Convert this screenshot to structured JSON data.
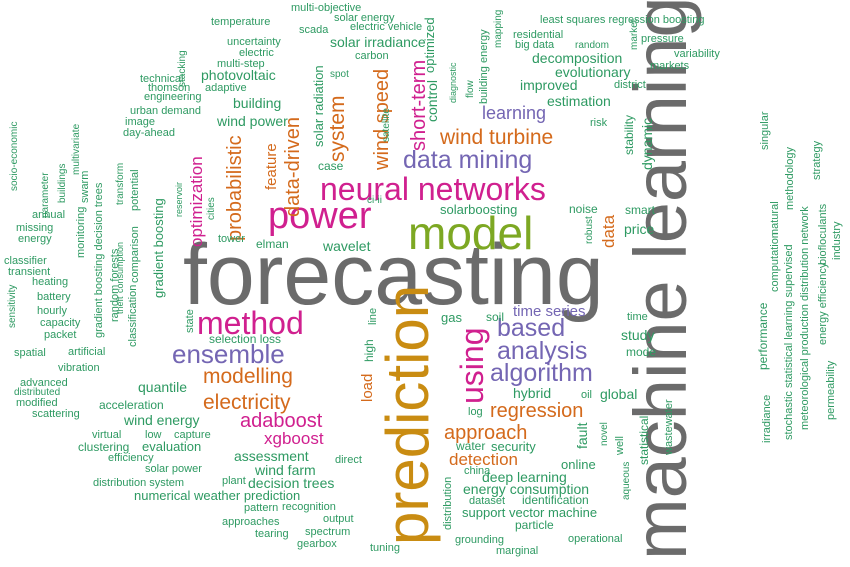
{
  "colors": {
    "gray": "#6b6b6b",
    "green": "#2e9a62",
    "orange": "#d46a1c",
    "magenta": "#d0208f",
    "purple": "#7466b3",
    "olive": "#7da823",
    "gold": "#c98c12",
    "teal": "#1f8c63"
  },
  "words": {
    "forecasting": "forecasting",
    "machine_learning": "machine learning",
    "prediction": "prediction",
    "model": "model",
    "power": "power",
    "neural_networks": "neural networks",
    "method": "method",
    "ensemble": "ensemble",
    "data_mining": "data mining",
    "using": "using",
    "based": "based",
    "analysis": "analysis",
    "algorithm": "algorithm",
    "modelling": "modelling",
    "electricity": "electricity",
    "adaboost": "adaboost",
    "xgboost": "xgboost",
    "regression": "regression",
    "approach": "approach",
    "detection": "detection",
    "wind_turbine": "wind turbine",
    "learning": "learning",
    "system": "system",
    "wind_speed": "wind speed",
    "short_term": "short-term",
    "data_driven": "data-driven",
    "probabilistic": "probabilistic",
    "optimization": "optimization",
    "feature": "feature",
    "data": "data",
    "time_series": "time series",
    "quantile": "quantile",
    "wind_energy": "wind energy",
    "assessment": "assessment",
    "wind_farm": "wind farm",
    "decision_trees": "decision trees",
    "numerical_weather_prediction": "numerical weather prediction",
    "deep_learning": "deep learning",
    "energy_consumption": "energy consumption",
    "support_vector_machine": "support vector machine",
    "identification": "identification",
    "hybrid": "hybrid",
    "global": "global",
    "statistical": "statistical",
    "estimation": "estimation",
    "improved": "improved",
    "evolutionary": "evolutionary",
    "decomposition": "decomposition",
    "photovoltaic": "photovoltaic",
    "building": "building",
    "wind_power": "wind power",
    "solar_irradiance": "solar irradiance",
    "control": "control",
    "wavelet": "wavelet",
    "elman": "elman",
    "tower": "tower",
    "solarboosting": "solarboosting",
    "price": "price",
    "smart": "smart",
    "noise": "noise",
    "study": "study",
    "mode": "mode",
    "gas": "gas",
    "soil": "soil",
    "time": "time",
    "selection_loss": "selection loss",
    "high": "high",
    "line": "line",
    "state": "state",
    "load": "load",
    "fault": "fault",
    "security": "security",
    "online": "online",
    "water": "water",
    "china": "china",
    "dataset": "dataset",
    "particle": "particle",
    "grounding": "grounding",
    "operational": "operational",
    "marginal": "marginal",
    "log": "log",
    "oil": "oil",
    "well": "well",
    "novel": "novel",
    "wastewater": "wastewater",
    "aqueous": "aqueous",
    "distribution": "distribution",
    "multi_objective": "multi-objective",
    "solar_energy": "solar energy",
    "electric_vehicle": "electric vehicle",
    "temperature": "temperature",
    "scada": "scada",
    "uncertainty": "uncertainty",
    "electric": "electric",
    "carbon": "carbon",
    "multi_step": "multi-step",
    "spot": "spot",
    "technical": "technical",
    "thomson": "thomson",
    "adaptive": "adaptive",
    "engineering": "engineering",
    "urban_demand": "urban demand",
    "image": "image",
    "day_ahead": "day-ahead",
    "least_squares": "least squares regression boosting",
    "residential": "residential",
    "big_data": "big data",
    "random": "random",
    "pressure": "pressure",
    "variability": "variability",
    "markets": "markets",
    "district": "district",
    "risk": "risk",
    "stability": "stability",
    "dynamic": "dynamic",
    "market": "market",
    "mapping": "mapping",
    "diagnostic": "diagnostic",
    "flow": "flow",
    "building_energy": "building energy",
    "optimized": "optimized",
    "solar_radiation": "solar radiation",
    "satellite": "satellite",
    "case": "case",
    "cities": "cities",
    "reservoir": "reservoir",
    "ci_ii": "ci-ii",
    "robust": "robust",
    "stacking": "stacking",
    "socio_economic": "socio-economic",
    "parameter": "parameter",
    "buildings": "buildings",
    "multivariate": "multivariate",
    "swarm": "swarm",
    "annual": "annual",
    "missing": "missing",
    "energy": "energy",
    "classifier": "classifier",
    "transient": "transient",
    "heating": "heating",
    "battery": "battery",
    "hourly": "hourly",
    "capacity": "capacity",
    "packet": "packet",
    "spatial": "spatial",
    "artificial": "artificial",
    "vibration": "vibration",
    "advanced": "advanced",
    "distributed": "distributed",
    "modified": "modified",
    "scattering": "scattering",
    "sensitivity": "sensitivity",
    "gradient_boosting_decision_trees": "gradient boosting decision trees",
    "random_forests": "random forests",
    "classification": "classification",
    "gradient_boosting": "gradient boosting",
    "comparison": "comparison",
    "potential": "potential",
    "consumption": "consumption",
    "theft": "theft",
    "monitoring": "monitoring",
    "transform": "transform",
    "acceleration": "acceleration",
    "virtual": "virtual",
    "low": "low",
    "capture": "capture",
    "clustering": "clustering",
    "evaluation": "evaluation",
    "efficiency": "efficiency",
    "solar_power": "solar power",
    "direct": "direct",
    "distribution_system": "distribution system",
    "plant": "plant",
    "pattern": "pattern",
    "recognition": "recognition",
    "approaches": "approaches",
    "output": "output",
    "tearing": "tearing",
    "spectrum": "spectrum",
    "gearbox": "gearbox",
    "tuning": "tuning",
    "performance": "performance",
    "computation": "computation",
    "natural": "natural",
    "irradiance": "irradiance",
    "stochastic": "stochastic statistical learning supervised",
    "meteorological": "meteorological production distribution network",
    "methodology": "methodology",
    "strategy": "strategy",
    "singular": "singular",
    "biofloculants": "biofloculants",
    "industry": "industry",
    "energy_efficiency": "energy efficiency",
    "permeability": "permeability"
  }
}
